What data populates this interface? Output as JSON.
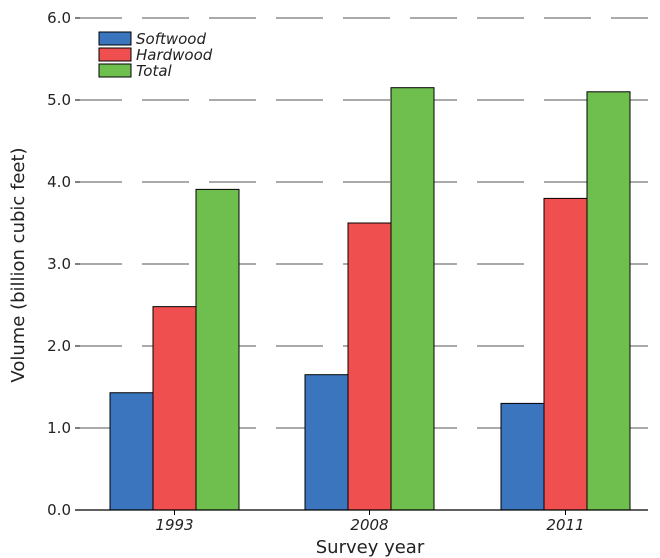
{
  "chart_data": {
    "type": "bar",
    "categories": [
      "1993",
      "2008",
      "2011"
    ],
    "series": [
      {
        "name": "Softwood",
        "values": [
          1.43,
          1.65,
          1.3
        ],
        "color": "#3a75be"
      },
      {
        "name": "Hardwood",
        "values": [
          2.48,
          3.5,
          3.8
        ],
        "color": "#ef4f4f"
      },
      {
        "name": "Total",
        "values": [
          3.91,
          5.15,
          5.1
        ],
        "color": "#6fbf4f"
      }
    ],
    "xlabel": "Survey year",
    "ylabel": "Volume (billion cubic feet)",
    "ylim": [
      0,
      6
    ],
    "yticks": [
      "0.0",
      "1.0",
      "2.0",
      "3.0",
      "4.0",
      "5.0",
      "6.0"
    ],
    "grid": "horizontal dashed",
    "legend_position": "top-left"
  }
}
